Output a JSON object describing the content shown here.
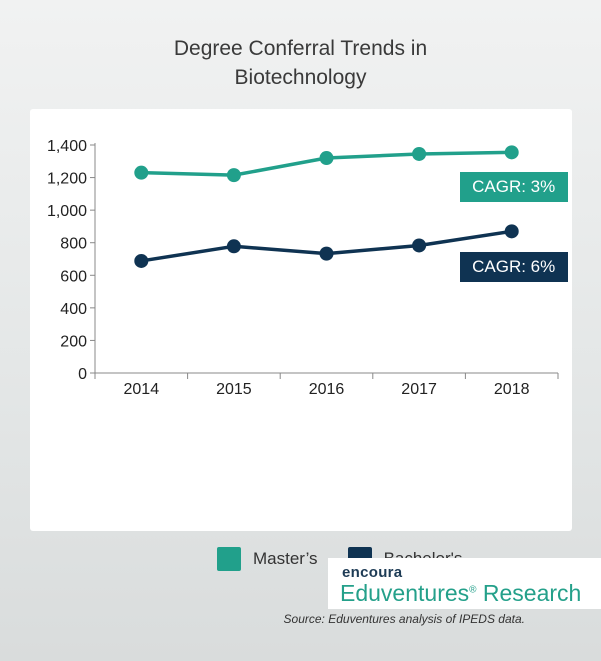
{
  "chart_data": {
    "type": "line",
    "title_lines": [
      "Degree Conferral Trends in",
      "Biotechnology"
    ],
    "categories": [
      "2014",
      "2015",
      "2016",
      "2017",
      "2018"
    ],
    "ylim": [
      0,
      1400
    ],
    "yticks": [
      0,
      200,
      400,
      600,
      800,
      1000,
      1200,
      1400
    ],
    "ytick_labels": [
      "0",
      "200",
      "400",
      "600",
      "800",
      "1,000",
      "1,200",
      "1,400"
    ],
    "grid": false,
    "legend_position": "bottom",
    "series": [
      {
        "name": "Master’s",
        "color": "#21a08b",
        "values": [
          1230,
          1215,
          1320,
          1345,
          1355
        ],
        "annotation": "CAGR: 3%"
      },
      {
        "name": "Bachelor's",
        "color": "#0f3352",
        "values": [
          688,
          778,
          733,
          783,
          870
        ],
        "annotation": "CAGR: 6%"
      }
    ],
    "source": "Source: Eduventures analysis of IPEDS data."
  },
  "brand": {
    "logo": "encoura",
    "name": "Eduventures",
    "mark": "®",
    "suffix": " Research"
  }
}
